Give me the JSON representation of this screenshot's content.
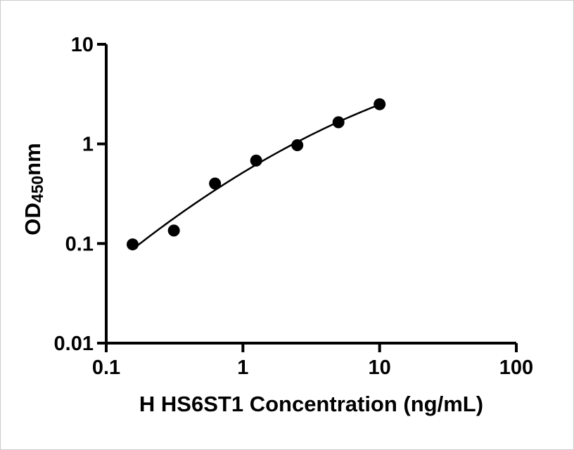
{
  "figure": {
    "background": "#ffffff",
    "border_color": "#cccccc"
  },
  "chart_data": {
    "type": "scatter",
    "title": "",
    "xlabel": "H HS6ST1 Concentration (ng/mL)",
    "ylabel": "OD450nm",
    "ylabel_parts": {
      "prefix": "OD",
      "sub": "450",
      "suffix": "nm"
    },
    "xscale": "log",
    "yscale": "log",
    "xlim": [
      0.1,
      100
    ],
    "ylim": [
      0.01,
      10
    ],
    "x_tick_values": [
      0.1,
      1,
      10,
      100
    ],
    "x_tick_labels": [
      "0.1",
      "1",
      "10",
      "100"
    ],
    "y_tick_values": [
      0.01,
      0.1,
      1,
      10
    ],
    "y_tick_labels": [
      "0.01",
      "0.1",
      "1",
      "10"
    ],
    "x": [
      0.156,
      0.3125,
      0.625,
      1.25,
      2.5,
      5,
      10
    ],
    "y": [
      0.098,
      0.135,
      0.4,
      0.68,
      0.97,
      1.65,
      2.5
    ],
    "curve": "smooth-fit",
    "grid": false,
    "legend": false,
    "colors": {
      "axis": "#000000",
      "marker": "#000000",
      "line": "#000000",
      "text": "#000000"
    }
  }
}
